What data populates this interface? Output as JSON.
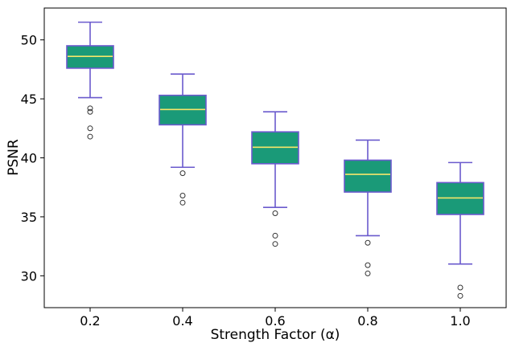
{
  "chart_data": {
    "type": "box",
    "xlabel": "Strength Factor (α)",
    "ylabel": "PSNR",
    "ylim": [
      27.3,
      52.7
    ],
    "yticks": [
      30,
      35,
      40,
      45,
      50
    ],
    "grid": false,
    "legend": null,
    "colors": {
      "box_fill": "#1a9a78",
      "box_edge": "#6a5acd",
      "whisker": "#6a5acd",
      "median": "#f5e66a",
      "flier_edge": "#333333"
    },
    "categories": [
      "0.2",
      "0.4",
      "0.6",
      "0.8",
      "1.0"
    ],
    "boxes": [
      {
        "category": "0.2",
        "whisker_low": 45.1,
        "q1": 47.6,
        "median": 48.6,
        "q3": 49.5,
        "whisker_high": 51.5,
        "fliers": [
          44.2,
          43.9,
          42.5,
          41.8
        ]
      },
      {
        "category": "0.4",
        "whisker_low": 39.2,
        "q1": 42.8,
        "median": 44.1,
        "q3": 45.3,
        "whisker_high": 47.1,
        "fliers": [
          38.7,
          36.8,
          36.2
        ]
      },
      {
        "category": "0.6",
        "whisker_low": 35.8,
        "q1": 39.5,
        "median": 40.9,
        "q3": 42.2,
        "whisker_high": 43.9,
        "fliers": [
          35.3,
          33.4,
          32.7
        ]
      },
      {
        "category": "0.8",
        "whisker_low": 33.4,
        "q1": 37.1,
        "median": 38.6,
        "q3": 39.8,
        "whisker_high": 41.5,
        "fliers": [
          32.8,
          30.9,
          30.2
        ]
      },
      {
        "category": "1.0",
        "whisker_low": 31.0,
        "q1": 35.2,
        "median": 36.6,
        "q3": 37.9,
        "whisker_high": 39.6,
        "fliers": [
          29.0,
          28.3
        ]
      }
    ]
  }
}
